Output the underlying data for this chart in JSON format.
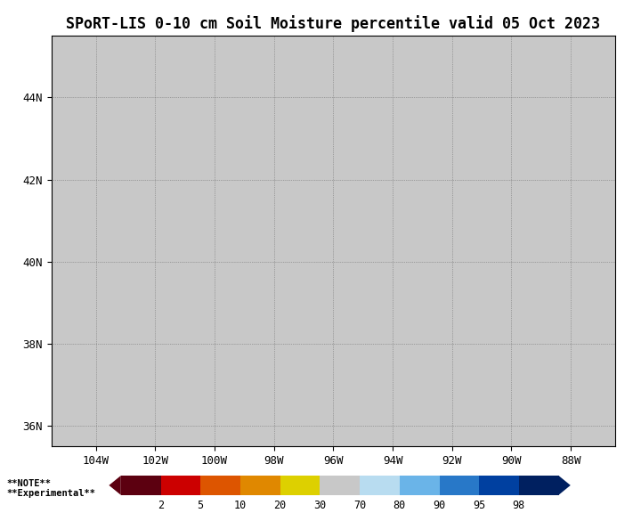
{
  "title": "SPoRT-LIS 0-10 cm Soil Moisture percentile valid 05 Oct 2023",
  "title_fontsize": 12,
  "xlim": [
    -105.5,
    -86.5
  ],
  "ylim": [
    35.5,
    45.5
  ],
  "xticks": [
    -104,
    -102,
    -100,
    -98,
    -96,
    -94,
    -92,
    -90,
    -88
  ],
  "xtick_labels": [
    "104W",
    "102W",
    "100W",
    "98W",
    "96W",
    "94W",
    "92W",
    "90W",
    "88W"
  ],
  "yticks": [
    36,
    38,
    40,
    42,
    44
  ],
  "ytick_labels": [
    "36N",
    "38N",
    "40N",
    "42N",
    "44N"
  ],
  "colorbar_levels": [
    0,
    2,
    5,
    10,
    20,
    30,
    70,
    80,
    90,
    95,
    98,
    100
  ],
  "colorbar_colors": [
    "#5c0010",
    "#cc0000",
    "#dd5500",
    "#e08800",
    "#ddd000",
    "#c8c8c8",
    "#b8dcf0",
    "#6ab4e8",
    "#2878c8",
    "#0040a0",
    "#002060"
  ],
  "colorbar_tick_labels": [
    "2",
    "5",
    "10",
    "20",
    "30",
    "70",
    "80",
    "90",
    "95",
    "98"
  ],
  "note_text_line1": "**NOTE**",
  "note_text_line2": "**Experimental**",
  "map_background": "#c8c8c8",
  "state_border_color": "black",
  "grid_color": "#808080",
  "fig_bg": "white"
}
